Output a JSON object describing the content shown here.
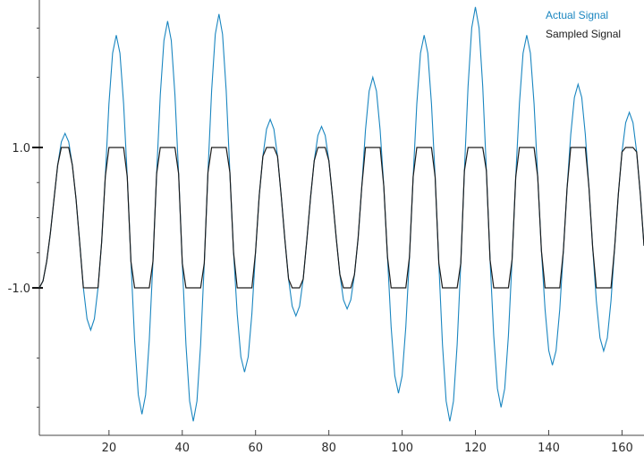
{
  "chart_data": {
    "type": "line",
    "title": "",
    "xlabel": "",
    "ylabel": "",
    "xlim": [
      1,
      166
    ],
    "ylim": [
      -3.1,
      3.1
    ],
    "x_ticks": [
      20,
      40,
      60,
      80,
      100,
      120,
      140,
      160
    ],
    "x_tick_labels": [
      "20",
      "40",
      "60",
      "80",
      "100",
      "120",
      "140",
      "160"
    ],
    "y_ticks": [
      -1,
      1
    ],
    "y_tick_labels": [
      "-1.0",
      "1.0"
    ],
    "grid": false,
    "legend_position": "top-right",
    "series": [
      {
        "name": "Actual Signal",
        "color": "#1a86c0",
        "period": 14.0,
        "phase": 4.5,
        "amplitudes_per_half_cycle": [
          1.0,
          1.2,
          1.6,
          2.6,
          2.8,
          2.8,
          2.9,
          2.9,
          2.2,
          1.4,
          1.4,
          1.3,
          1.3,
          2.0,
          2.5,
          2.6,
          2.9,
          3.0,
          2.7,
          2.6,
          2.1,
          1.9,
          1.9,
          1.5,
          1.8
        ]
      },
      {
        "name": "Sampled Signal",
        "color": "#1c1c1c",
        "derived_from": "Actual Signal",
        "clip_range": [
          -1,
          1
        ]
      }
    ]
  }
}
